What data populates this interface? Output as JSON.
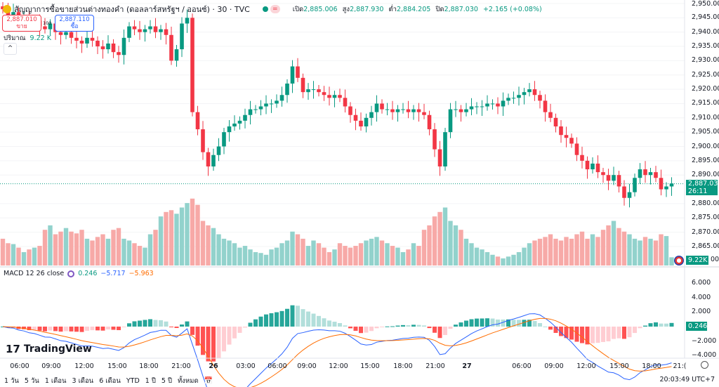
{
  "header": {
    "title": "สัญญาการซื้อขายส่วนต่างทองคำ (ดอลลาร์สหรัฐฯ / ออนซ์) · 30 · TVC",
    "ohlc": {
      "open_label": "เปิด",
      "open": "2,885.006",
      "high_label": "สูง",
      "high": "2,887.930",
      "low_label": "ต่ำ",
      "low": "2,884.205",
      "close_label": "ปิด",
      "close": "2,887.030",
      "change": "+2.165 (+0.08%)"
    },
    "market_status_icon": "dot-green",
    "sell": {
      "price": "2,887.010",
      "label": "ขาย"
    },
    "buy": {
      "price": "2,887.110",
      "label": "ซื้อ"
    },
    "spread": "100",
    "volume_label": "ปริมาณ",
    "volume_value": "9.22 K"
  },
  "macd": {
    "label": "MACD 12 26 close",
    "hist": "0.246",
    "macd": "−5.717",
    "signal": "−5.963",
    "axis": [
      "6.000",
      "4.000",
      "2.000",
      "−2.000",
      "−4.000"
    ],
    "last_tag": "0.246"
  },
  "price_axis": [
    "2,950.000",
    "2,945.000",
    "2,940.000",
    "2,935.000",
    "2,930.000",
    "2,925.000",
    "2,920.000",
    "2,915.000",
    "2,910.000",
    "2,905.000",
    "2,900.000",
    "2,895.000",
    "2,890.000",
    "2,880.000",
    "2,875.000",
    "2,870.000",
    "2,865.000"
  ],
  "last_price": {
    "price": "2,887.030",
    "countdown": "26:11"
  },
  "volume_tag": "9.22K",
  "time_axis": [
    "06:00",
    "09:00",
    "12:00",
    "15:00",
    "18:00",
    "21:00",
    "26",
    "03:00",
    "06:00",
    "09:00",
    "12:00",
    "15:00",
    "18:00",
    "21:00",
    "27",
    "06:00",
    "09:00",
    "12:00",
    "15:00",
    "18:00",
    "21:("
  ],
  "bottom_bar": {
    "ranges": [
      "1 วัน",
      "5 วัน",
      "1 เดือน",
      "3 เดือน",
      "6 เดือน",
      "YTD",
      "1 ปี",
      "5 ปี",
      "ทั้งหมด"
    ],
    "clock": "20:03:49 UTC+7"
  },
  "logo": "TradingView",
  "colors": {
    "up": "#089981",
    "down": "#f23645",
    "vol_up": "#92d2cc",
    "vol_down": "#f7a9a7",
    "macd": "#2962ff",
    "signal": "#ff6d00"
  },
  "chart_data": {
    "type": "candlestick",
    "interval": "30",
    "price_range": [
      2862,
      2950
    ],
    "close": [
      2948,
      2946,
      2947,
      2944,
      2945,
      2943,
      2944,
      2942,
      2941,
      2943,
      2940,
      2939,
      2940,
      2938,
      2937,
      2936,
      2938,
      2937,
      2935,
      2934,
      2936,
      2933,
      2932,
      2938,
      2942,
      2941,
      2940,
      2941,
      2942,
      2940,
      2941,
      2939,
      2930,
      2934,
      2943,
      2945,
      2912,
      2906,
      2898,
      2893,
      2897,
      2900,
      2905,
      2907,
      2908,
      2909,
      2911,
      2913,
      2913,
      2914,
      2915,
      2915,
      2916,
      2918,
      2922,
      2928,
      2924,
      2919,
      2920,
      2920,
      2919,
      2918,
      2917,
      2918,
      2917,
      2914,
      2911,
      2909,
      2907,
      2910,
      2912,
      2915,
      2913,
      2913,
      2912,
      2913,
      2913,
      2912,
      2913,
      2912,
      2911,
      2906,
      2899,
      2893,
      2905,
      2913,
      2913,
      2912,
      2913,
      2914,
      2914,
      2914,
      2915,
      2915,
      2914,
      2916,
      2917,
      2917,
      2918,
      2919,
      2920,
      2918,
      2916,
      2912,
      2910,
      2907,
      2904,
      2903,
      2901,
      2897,
      2895,
      2892,
      2894,
      2891,
      2890,
      2888,
      2890,
      2886,
      2882,
      2884,
      2889,
      2892,
      2890,
      2891,
      2889,
      2885,
      2886,
      2887.03
    ],
    "volume_k": [
      30,
      25,
      24,
      20,
      15,
      18,
      20,
      22,
      40,
      45,
      35,
      38,
      42,
      38,
      36,
      40,
      30,
      28,
      32,
      35,
      30,
      40,
      42,
      30,
      28,
      25,
      22,
      20,
      35,
      40,
      55,
      60,
      62,
      58,
      65,
      70,
      75,
      68,
      50,
      45,
      42,
      35,
      30,
      28,
      25,
      20,
      22,
      18,
      15,
      14,
      12,
      18,
      20,
      25,
      28,
      38,
      35,
      30,
      22,
      28,
      25,
      20,
      15,
      18,
      25,
      22,
      20,
      22,
      25,
      28,
      30,
      32,
      28,
      25,
      22,
      20,
      15,
      18,
      25,
      22,
      40,
      45,
      55,
      60,
      65,
      50,
      45,
      40,
      30,
      25,
      20,
      18,
      15,
      12,
      10,
      8,
      10,
      12,
      15,
      20,
      25,
      28,
      30,
      32,
      35,
      30,
      28,
      32,
      30,
      35,
      38,
      30,
      35,
      32,
      40,
      45,
      50,
      42,
      38,
      35,
      30,
      28,
      32,
      30,
      28,
      35,
      33,
      9.22
    ]
  }
}
